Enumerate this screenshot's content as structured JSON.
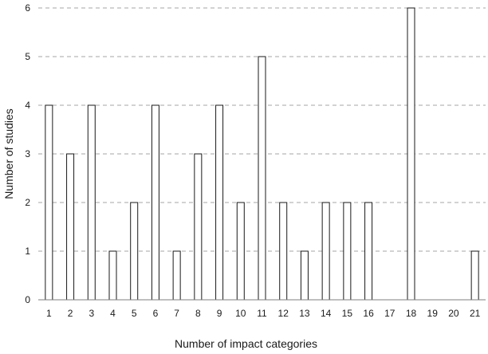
{
  "chart_data": {
    "type": "bar",
    "categories": [
      "1",
      "2",
      "3",
      "4",
      "5",
      "6",
      "7",
      "8",
      "9",
      "10",
      "11",
      "12",
      "13",
      "14",
      "15",
      "16",
      "17",
      "18",
      "19",
      "20",
      "21"
    ],
    "values": [
      4,
      3,
      4,
      1,
      2,
      4,
      1,
      3,
      4,
      2,
      5,
      2,
      1,
      2,
      2,
      2,
      0,
      6,
      0,
      0,
      1
    ],
    "title": "",
    "xlabel": "Number of impact categories",
    "ylabel": "Number of studies",
    "ylim": [
      0,
      6
    ],
    "yticks": [
      0,
      1,
      2,
      3,
      4,
      5,
      6
    ],
    "grid": true,
    "legend": "none",
    "colors": {
      "bar_fill": "#ffffff",
      "bar_stroke": "#1a1a1a",
      "grid": "#a6a6a6"
    }
  }
}
